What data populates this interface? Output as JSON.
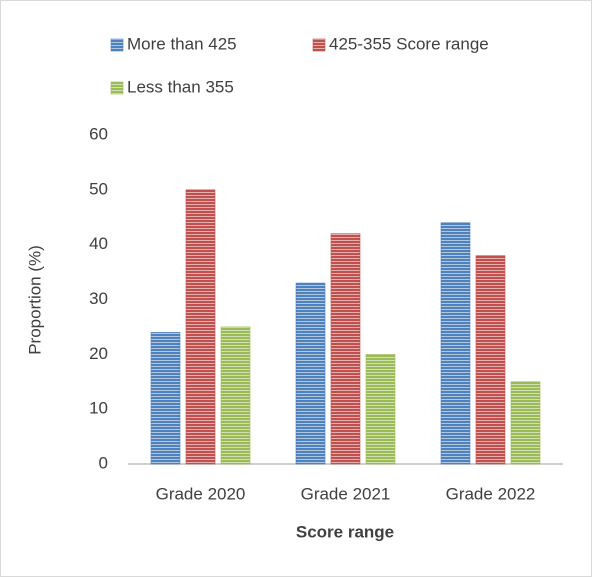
{
  "chart_data": {
    "type": "bar",
    "categories": [
      "Grade 2020",
      "Grade 2021",
      "Grade 2022"
    ],
    "series": [
      {
        "name": "More than 425",
        "color": "#4f81bd",
        "values": [
          24,
          33,
          44
        ]
      },
      {
        "name": "425-355 Score range",
        "color": "#c0504d",
        "values": [
          50,
          42,
          38
        ]
      },
      {
        "name": "Less than 355",
        "color": "#9bbb59",
        "values": [
          25,
          20,
          15
        ]
      }
    ],
    "xlabel": "Score range",
    "ylabel": "Proportion (%)",
    "ylim": [
      0,
      60
    ],
    "yticks": [
      0,
      10,
      20,
      30,
      40,
      50,
      60
    ],
    "grid": false,
    "legend": "top"
  }
}
